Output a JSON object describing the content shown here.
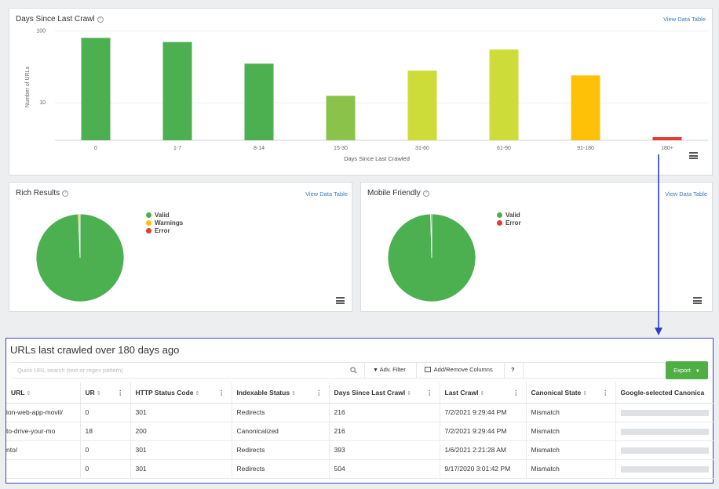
{
  "days_panel": {
    "title": "Days Since Last Crawl",
    "view_link": "View Data Table"
  },
  "chart_data": [
    {
      "type": "bar",
      "title": "Days Since Last Crawl",
      "xlabel": "Days Since Last Crawled",
      "ylabel": "Number of URLs",
      "y_scale": "log",
      "yticks": [
        "100",
        "10"
      ],
      "categories": [
        "0",
        "1-7",
        "8-14",
        "15-30",
        "31-60",
        "61-90",
        "91-180",
        "180+"
      ],
      "values": [
        80,
        70,
        35,
        12.5,
        28,
        55,
        24,
        4
      ],
      "colors": [
        "#4caf50",
        "#4caf50",
        "#4caf50",
        "#8bc34a",
        "#cddc39",
        "#cddc39",
        "#ffc107",
        "#e53935"
      ],
      "ylim": [
        3,
        130
      ],
      "grid": true
    },
    {
      "type": "pie",
      "title": "Rich Results",
      "labels": [
        "Valid",
        "Warnings",
        "Error"
      ],
      "values": [
        99.4,
        0.6,
        0
      ],
      "colors": [
        "#4caf50",
        "#ffc107",
        "#e53935"
      ]
    },
    {
      "type": "pie",
      "title": "Mobile Friendly",
      "labels": [
        "Valid",
        "Error"
      ],
      "values": [
        99.6,
        0.4
      ],
      "colors": [
        "#4caf50",
        "#e53935"
      ]
    }
  ],
  "rich_panel": {
    "title": "Rich Results",
    "view_link": "View Data Table"
  },
  "mobile_panel": {
    "title": "Mobile Friendly",
    "view_link": "View Data Table"
  },
  "table_panel": {
    "title": "URLs last crawled over 180 days ago",
    "search_placeholder": "Quick URL search (text or regex pattern)",
    "adv_filter": "Adv. Filter",
    "add_remove": "Add/Remove Columns",
    "help": "?",
    "export": "Export",
    "columns": [
      "URL",
      "UR",
      "HTTP Status Code",
      "Indexable Status",
      "Days Since Last Crawl",
      "Last Crawl",
      "Canonical State",
      "Google-selected Canonica"
    ],
    "rows": [
      [
        "ion-web-app-movil/",
        "0",
        "301",
        "Redirects",
        "216",
        "7/2/2021 9:29:44 PM",
        "Mismatch"
      ],
      [
        "to-drive-your-mo",
        "18",
        "200",
        "Canonicalized",
        "216",
        "7/2/2021 9:29:44 PM",
        "Mismatch"
      ],
      [
        "nto/",
        "0",
        "301",
        "Redirects",
        "393",
        "1/6/2021 2:21:28 AM",
        "Mismatch"
      ],
      [
        "",
        "0",
        "301",
        "Redirects",
        "504",
        "9/17/2020 3:01:42 PM",
        "Mismatch"
      ]
    ]
  },
  "accent_color": "#3b49c9"
}
